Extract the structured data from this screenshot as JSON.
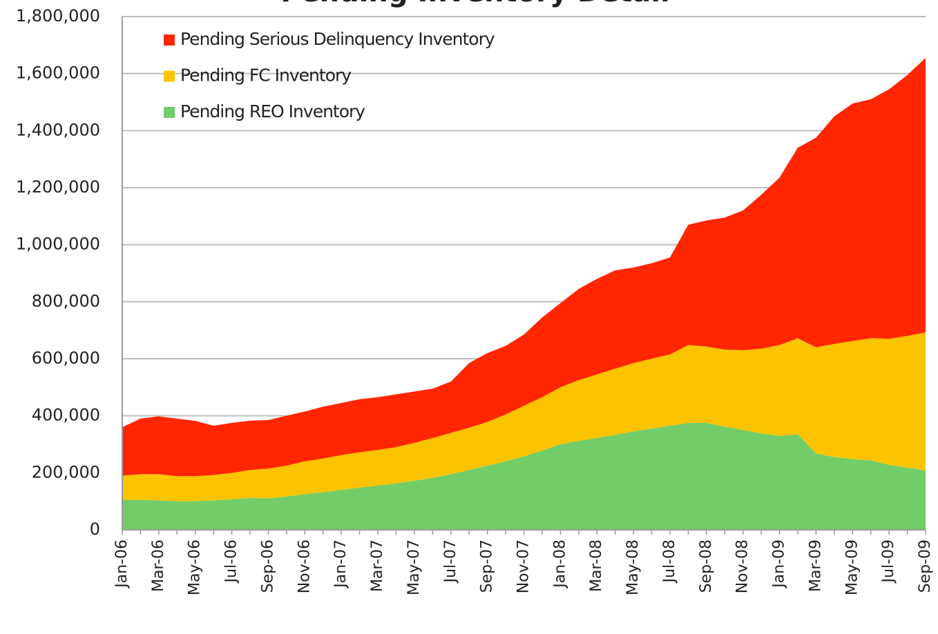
{
  "chart_data": {
    "type": "stacked_area",
    "title": "Pending Inventory Detail",
    "categories": [
      "Jan-06",
      null,
      "Mar-06",
      null,
      "May-06",
      null,
      "Jul-06",
      null,
      "Sep-06",
      null,
      "Nov-06",
      null,
      "Jan-07",
      null,
      "Mar-07",
      null,
      "May-07",
      null,
      "Jul-07",
      null,
      "Sep-07",
      null,
      "Nov-07",
      null,
      "Jan-08",
      null,
      "Mar-08",
      null,
      "May-08",
      null,
      "Jul-08",
      null,
      "Sep-08",
      null,
      "Nov-08",
      null,
      "Jan-09",
      null,
      "Mar-09",
      null,
      "May-09",
      null,
      "Jul-09",
      null,
      "Sep-09"
    ],
    "series": [
      {
        "name": "Pending Serious Delinquency Inventory",
        "color": "#ff2600",
        "values": [
          170000,
          195000,
          203000,
          202000,
          194000,
          173000,
          175000,
          173000,
          170000,
          175000,
          175000,
          182000,
          183000,
          186000,
          185000,
          185000,
          180000,
          173000,
          180000,
          227000,
          242000,
          240000,
          250000,
          280000,
          295000,
          320000,
          335000,
          345000,
          335000,
          335000,
          340000,
          422000,
          442000,
          463000,
          490000,
          540000,
          587000,
          668000,
          735000,
          798000,
          833000,
          838000,
          875000,
          915000,
          963000
        ]
      },
      {
        "name": "Pending FC Inventory",
        "color": "#fcc400",
        "values": [
          85000,
          90000,
          92000,
          88000,
          88000,
          89000,
          93000,
          98000,
          105000,
          108000,
          115000,
          118000,
          122000,
          124000,
          125000,
          127000,
          133000,
          140000,
          145000,
          148000,
          153000,
          165000,
          177000,
          187000,
          200000,
          213000,
          223000,
          232000,
          240000,
          245000,
          250000,
          273000,
          268000,
          270000,
          280000,
          297000,
          318000,
          337000,
          372000,
          397000,
          414000,
          429000,
          442000,
          462000,
          484000
        ]
      },
      {
        "name": "Pending REO Inventory",
        "color": "#72cd68",
        "values": [
          105000,
          105000,
          103000,
          100000,
          100000,
          103000,
          107000,
          112000,
          110000,
          117000,
          125000,
          132000,
          140000,
          148000,
          155000,
          163000,
          172000,
          182000,
          195000,
          210000,
          225000,
          240000,
          258000,
          278000,
          300000,
          312000,
          322000,
          333000,
          345000,
          355000,
          365000,
          375000,
          375000,
          362000,
          350000,
          338000,
          330000,
          335000,
          268000,
          255000,
          248000,
          243000,
          228000,
          218000,
          208000
        ]
      }
    ],
    "ylim": [
      0,
      1800000
    ],
    "yticks": [
      0,
      {
        "value": 200000,
        "label": "200,000"
      },
      {
        "value": 400000,
        "label": "400,000"
      },
      {
        "value": 600000,
        "label": "600,000"
      },
      {
        "value": 800000,
        "label": "800,000"
      },
      {
        "value": 1000000,
        "label": "1,000,000"
      },
      {
        "value": 1200000,
        "label": "1,200,000"
      },
      {
        "value": 1400000,
        "label": "1,400,000"
      },
      {
        "value": 1600000,
        "label": "1,600,000"
      },
      {
        "value": 1800000,
        "label": "1,800,000"
      }
    ],
    "grid": true,
    "legend": "upper left"
  }
}
